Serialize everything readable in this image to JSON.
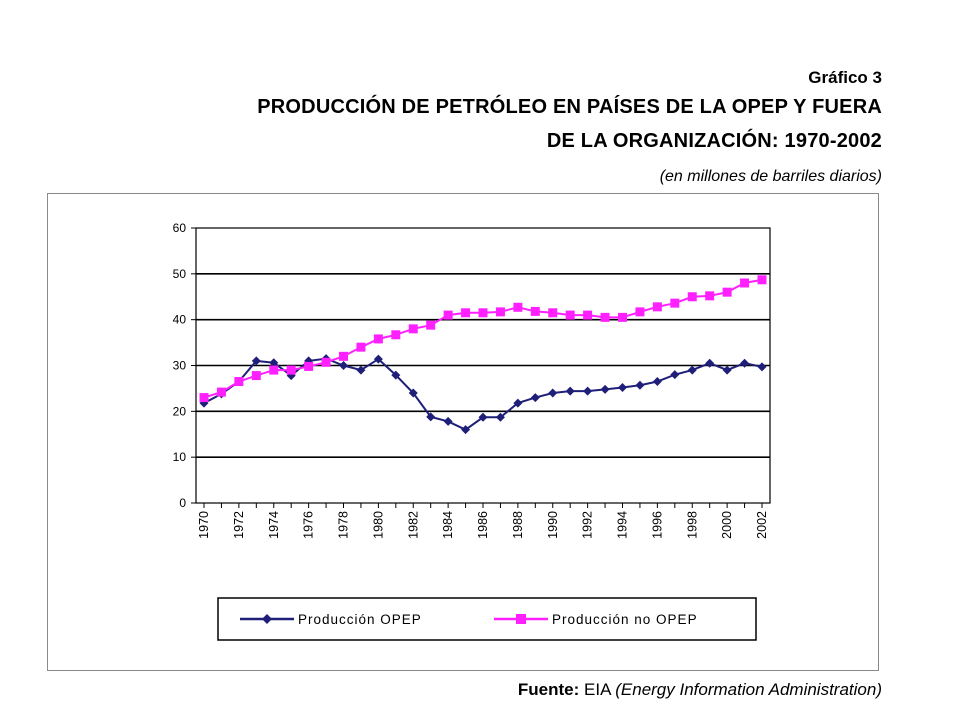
{
  "figure_label": "Gráfico 3",
  "title_line1": "PRODUCCIÓN DE PETRÓLEO EN PAÍSES DE LA OPEP Y FUERA",
  "title_line2": "DE LA ORGANIZACIÓN: 1970-2002",
  "units": "(en millones de barriles diarios)",
  "source_label": "Fuente:",
  "source_text": "EIA",
  "source_note": "(Energy Information Administration)",
  "chart_data": {
    "type": "line",
    "ylim": [
      0,
      60
    ],
    "yticks": [
      0,
      10,
      20,
      30,
      40,
      50,
      60
    ],
    "grid": true,
    "legend_position": "bottom",
    "categories": [
      1970,
      1971,
      1972,
      1973,
      1974,
      1975,
      1976,
      1977,
      1978,
      1979,
      1980,
      1981,
      1982,
      1983,
      1984,
      1985,
      1986,
      1987,
      1988,
      1989,
      1990,
      1991,
      1992,
      1993,
      1994,
      1995,
      1996,
      1997,
      1998,
      1999,
      2000,
      2001,
      2002
    ],
    "x_tick_labels": [
      "1970",
      "1972",
      "1974",
      "1976",
      "1978",
      "1980",
      "1982",
      "1984",
      "1986",
      "1988",
      "1990",
      "1992",
      "1994",
      "1996",
      "1998",
      "2000",
      "2002"
    ],
    "series": [
      {
        "name": "Producción OPEP",
        "color": "#1f1f7a",
        "marker": "diamond",
        "values": [
          21.8,
          23.8,
          26.5,
          31.0,
          30.6,
          27.8,
          31.0,
          31.5,
          30.0,
          29.0,
          31.4,
          27.9,
          24.0,
          18.8,
          17.8,
          16.0,
          18.7,
          18.7,
          21.8,
          23.0,
          24.0,
          24.4,
          24.4,
          24.8,
          25.2,
          25.7,
          26.5,
          28.0,
          29.0,
          30.5,
          29.0,
          30.5,
          29.7
        ]
      },
      {
        "name": "Producción no OPEP",
        "color": "#ff20ff",
        "marker": "square",
        "values": [
          23.0,
          24.2,
          26.5,
          27.8,
          29.0,
          29.0,
          29.8,
          30.7,
          32.0,
          34.0,
          35.8,
          36.7,
          38.0,
          38.8,
          41.0,
          41.5,
          41.5,
          41.7,
          42.7,
          41.8,
          41.5,
          41.0,
          41.0,
          40.5,
          40.5,
          41.7,
          42.8,
          43.6,
          45.0,
          45.2,
          46.0,
          48.0,
          48.7
        ]
      }
    ]
  }
}
